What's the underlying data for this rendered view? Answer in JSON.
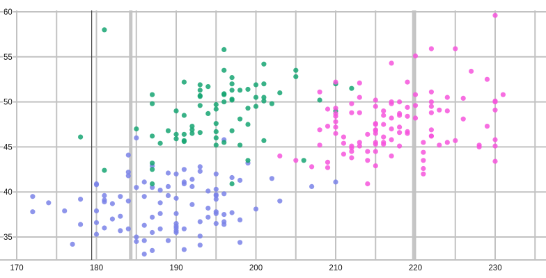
{
  "chart_data": {
    "type": "scatter",
    "title": "",
    "xlabel": "",
    "ylabel": "",
    "legend": "none",
    "xlim": [
      170,
      236
    ],
    "ylim": [
      32.45,
      60
    ],
    "x_ticks": [
      170,
      180,
      190,
      200,
      210,
      220,
      230
    ],
    "y_ticks": [
      35,
      40,
      45,
      50,
      55,
      60
    ],
    "grid": {
      "on": true,
      "color": "#c2c2c2",
      "thick_color": "#c6c6c6",
      "x_values": [
        170,
        175,
        180,
        185,
        190,
        195,
        200,
        205,
        210,
        215,
        220,
        225,
        230,
        235
      ],
      "y_values": [
        60,
        55,
        50,
        45,
        40,
        35,
        32.45
      ],
      "thick_x": [
        184.3,
        219.8
      ]
    },
    "annotations": {
      "vline": 179.4,
      "vline_color": "#444444"
    },
    "marker": {
      "shape": "circle",
      "radius": 3.6,
      "opacity": 0.85
    },
    "series": [
      {
        "name": "series-blue",
        "color": "#7a82e8",
        "points": [
          [
            181,
            39.1
          ],
          [
            186,
            39.5
          ],
          [
            195,
            40.3
          ],
          [
            193,
            36.7
          ],
          [
            190,
            39.3
          ],
          [
            181,
            38.9
          ],
          [
            195,
            39.2
          ],
          [
            193,
            34.1
          ],
          [
            190,
            42.0
          ],
          [
            186,
            34.6
          ],
          [
            180,
            36.6
          ],
          [
            182,
            38.7
          ],
          [
            191,
            42.5
          ],
          [
            198,
            34.4
          ],
          [
            185,
            46.0
          ],
          [
            195,
            37.8
          ],
          [
            197,
            37.7
          ],
          [
            184,
            35.9
          ],
          [
            194,
            38.2
          ],
          [
            174,
            38.8
          ],
          [
            180,
            35.3
          ],
          [
            189,
            40.6
          ],
          [
            185,
            40.5
          ],
          [
            180,
            37.9
          ],
          [
            187,
            40.5
          ],
          [
            183,
            39.5
          ],
          [
            187,
            37.2
          ],
          [
            172,
            39.5
          ],
          [
            180,
            40.9
          ],
          [
            178,
            36.4
          ],
          [
            178,
            39.2
          ],
          [
            188,
            38.8
          ],
          [
            184,
            42.2
          ],
          [
            195,
            37.6
          ],
          [
            196,
            39.8
          ],
          [
            190,
            36.5
          ],
          [
            180,
            40.8
          ],
          [
            181,
            36.0
          ],
          [
            184,
            44.1
          ],
          [
            182,
            37.0
          ],
          [
            195,
            39.6
          ],
          [
            186,
            41.1
          ],
          [
            196,
            37.5
          ],
          [
            190,
            36.0
          ],
          [
            193,
            42.3
          ],
          [
            181,
            39.6
          ],
          [
            194,
            40.1
          ],
          [
            185,
            35.0
          ],
          [
            195,
            42.0
          ],
          [
            185,
            34.5
          ],
          [
            192,
            41.4
          ],
          [
            184,
            39.0
          ],
          [
            192,
            40.6
          ],
          [
            195,
            36.5
          ],
          [
            188,
            37.6
          ],
          [
            190,
            35.7
          ],
          [
            198,
            41.3
          ],
          [
            190,
            37.6
          ],
          [
            191,
            41.1
          ],
          [
            196,
            36.4
          ],
          [
            197,
            41.6
          ],
          [
            190,
            35.5
          ],
          [
            198,
            36.9
          ],
          [
            191,
            35.9
          ],
          [
            184,
            41.8
          ],
          [
            187,
            33.5
          ],
          [
            195,
            39.7
          ],
          [
            189,
            39.6
          ],
          [
            196,
            45.8
          ],
          [
            187,
            35.5
          ],
          [
            193,
            42.8
          ],
          [
            191,
            40.9
          ],
          [
            194,
            37.2
          ],
          [
            190,
            36.2
          ],
          [
            189,
            42.1
          ],
          [
            189,
            34.6
          ],
          [
            187,
            42.9
          ],
          [
            196,
            36.7
          ],
          [
            193,
            35.1
          ],
          [
            210,
            41.1
          ],
          [
            207,
            40.6
          ],
          [
            202,
            41.5
          ],
          [
            177,
            34.2
          ],
          [
            176,
            37.9
          ],
          [
            200,
            38.1
          ],
          [
            203,
            39.0
          ],
          [
            186,
            33.1
          ],
          [
            183,
            35.7
          ],
          [
            199,
            43.2
          ],
          [
            188,
            35.9
          ],
          [
            172,
            37.8
          ],
          [
            191,
            33.6
          ],
          [
            186,
            36.3
          ],
          [
            192,
            38.6
          ],
          [
            188,
            40.2
          ],
          [
            183,
            37.3
          ]
        ]
      },
      {
        "name": "series-green",
        "color": "#16a572",
        "points": [
          [
            192,
            46.5
          ],
          [
            196,
            50.0
          ],
          [
            193,
            51.3
          ],
          [
            188,
            45.4
          ],
          [
            197,
            52.7
          ],
          [
            198,
            45.2
          ],
          [
            178,
            46.1
          ],
          [
            197,
            51.3
          ],
          [
            195,
            46.0
          ],
          [
            198,
            51.3
          ],
          [
            193,
            46.6
          ],
          [
            194,
            51.7
          ],
          [
            185,
            47.0
          ],
          [
            201,
            52.0
          ],
          [
            190,
            45.9
          ],
          [
            201,
            50.5
          ],
          [
            197,
            50.3
          ],
          [
            181,
            58.0
          ],
          [
            190,
            46.4
          ],
          [
            195,
            49.2
          ],
          [
            181,
            42.4
          ],
          [
            191,
            48.5
          ],
          [
            187,
            43.2
          ],
          [
            193,
            50.6
          ],
          [
            195,
            46.7
          ],
          [
            197,
            52.0
          ],
          [
            200,
            50.5
          ],
          [
            200,
            49.5
          ],
          [
            191,
            46.4
          ],
          [
            205,
            52.8
          ],
          [
            187,
            40.9
          ],
          [
            201,
            54.2
          ],
          [
            187,
            42.5
          ],
          [
            203,
            51.0
          ],
          [
            195,
            49.7
          ],
          [
            199,
            47.5
          ],
          [
            195,
            47.6
          ],
          [
            210,
            52.0
          ],
          [
            192,
            46.9
          ],
          [
            205,
            53.5
          ],
          [
            210,
            49.0
          ],
          [
            187,
            46.2
          ],
          [
            196,
            50.9
          ],
          [
            196,
            45.5
          ],
          [
            196,
            50.8
          ],
          [
            201,
            50.1
          ],
          [
            190,
            49.0
          ],
          [
            212,
            51.5
          ],
          [
            187,
            49.8
          ],
          [
            198,
            48.1
          ],
          [
            199,
            51.4
          ],
          [
            201,
            45.7
          ],
          [
            193,
            50.7
          ],
          [
            191,
            52.2
          ],
          [
            195,
            45.2
          ],
          [
            199,
            49.3
          ],
          [
            197,
            50.2
          ],
          [
            191,
            45.6
          ],
          [
            193,
            51.9
          ],
          [
            197,
            46.8
          ],
          [
            191,
            45.7
          ],
          [
            196,
            55.8
          ],
          [
            199,
            43.5
          ],
          [
            193,
            49.6
          ],
          [
            187,
            50.8
          ],
          [
            206,
            43.5
          ],
          [
            208,
            50.2
          ],
          [
            202,
            49.8
          ],
          [
            196,
            53.5
          ],
          [
            192,
            47.3
          ],
          [
            197,
            40.9
          ],
          [
            194,
            48.7
          ],
          [
            189,
            46.8
          ],
          [
            200,
            51.9
          ]
        ]
      },
      {
        "name": "series-magenta",
        "color": "#f655dc",
        "points": [
          [
            211,
            46.1
          ],
          [
            230,
            50.0
          ],
          [
            210,
            48.7
          ],
          [
            218,
            50.0
          ],
          [
            215,
            47.6
          ],
          [
            210,
            46.5
          ],
          [
            211,
            45.4
          ],
          [
            219,
            46.7
          ],
          [
            209,
            43.3
          ],
          [
            215,
            46.8
          ],
          [
            214,
            40.9
          ],
          [
            216,
            49.0
          ],
          [
            213,
            45.5
          ],
          [
            210,
            48.4
          ],
          [
            217,
            45.8
          ],
          [
            210,
            49.3
          ],
          [
            221,
            42.0
          ],
          [
            209,
            49.2
          ],
          [
            222,
            46.2
          ],
          [
            218,
            48.7
          ],
          [
            215,
            50.2
          ],
          [
            213,
            45.1
          ],
          [
            215,
            46.5
          ],
          [
            215,
            45.3
          ],
          [
            215,
            42.9
          ],
          [
            216,
            46.1
          ],
          [
            215,
            44.5
          ],
          [
            210,
            47.8
          ],
          [
            220,
            48.2
          ],
          [
            222,
            50.0
          ],
          [
            209,
            47.3
          ],
          [
            207,
            42.8
          ],
          [
            230,
            45.1
          ],
          [
            230,
            59.6
          ],
          [
            223,
            49.1
          ],
          [
            212,
            48.8
          ],
          [
            221,
            42.6
          ],
          [
            221,
            44.4
          ],
          [
            217,
            44.0
          ],
          [
            216,
            48.5
          ],
          [
            230,
            43.4
          ],
          [
            209,
            42.7
          ],
          [
            220,
            49.6
          ],
          [
            223,
            45.2
          ],
          [
            212,
            49.8
          ],
          [
            221,
            43.5
          ],
          [
            224,
            50.5
          ],
          [
            212,
            44.9
          ],
          [
            228,
            45.2
          ],
          [
            218,
            46.6
          ],
          [
            218,
            48.5
          ],
          [
            212,
            45.1
          ],
          [
            230,
            50.1
          ],
          [
            219,
            46.5
          ],
          [
            228,
            45.0
          ],
          [
            212,
            43.8
          ],
          [
            224,
            45.5
          ],
          [
            226,
            50.4
          ],
          [
            216,
            45.3
          ],
          [
            222,
            46.2
          ],
          [
            225,
            45.7
          ],
          [
            217,
            54.3
          ],
          [
            230,
            45.8
          ],
          [
            217,
            49.8
          ],
          [
            222,
            46.9
          ],
          [
            214,
            43.5
          ],
          [
            215,
            45.5
          ],
          [
            222,
            55.9
          ],
          [
            212,
            44.5
          ],
          [
            213,
            48.8
          ],
          [
            210,
            47.2
          ],
          [
            230,
            49.1
          ],
          [
            217,
            47.0
          ],
          [
            210,
            52.2
          ],
          [
            221,
            45.5
          ],
          [
            222,
            49.5
          ],
          [
            214,
            44.5
          ],
          [
            231,
            50.8
          ],
          [
            219,
            49.4
          ],
          [
            215,
            46.9
          ],
          [
            222,
            51.1
          ],
          [
            216,
            45.5
          ],
          [
            220,
            55.1
          ],
          [
            222,
            48.8
          ],
          [
            218,
            47.2
          ],
          [
            229,
            52.5
          ],
          [
            215,
            47.5
          ],
          [
            213,
            52.1
          ],
          [
            219,
            52.2
          ],
          [
            215,
            49.5
          ],
          [
            220,
            50.8
          ],
          [
            208,
            46.9
          ],
          [
            208,
            51.1
          ],
          [
            225,
            55.9
          ],
          [
            227,
            53.4
          ],
          [
            203,
            44.0
          ],
          [
            205,
            43.5
          ],
          [
            208,
            45.2
          ],
          [
            213,
            50.5
          ],
          [
            217,
            50.0
          ],
          [
            219,
            48.4
          ],
          [
            216,
            47.5
          ],
          [
            217,
            48.2
          ],
          [
            214,
            46.4
          ],
          [
            218,
            45.1
          ],
          [
            226,
            48.1
          ],
          [
            229,
            47.3
          ],
          [
            224,
            49.0
          ],
          [
            211,
            44.2
          ]
        ]
      }
    ]
  },
  "axes": {
    "x_tick_labels": [
      "170",
      "180",
      "190",
      "200",
      "210",
      "220",
      "230"
    ],
    "y_tick_labels": [
      "35",
      "40",
      "45",
      "50",
      "55",
      "60"
    ]
  }
}
